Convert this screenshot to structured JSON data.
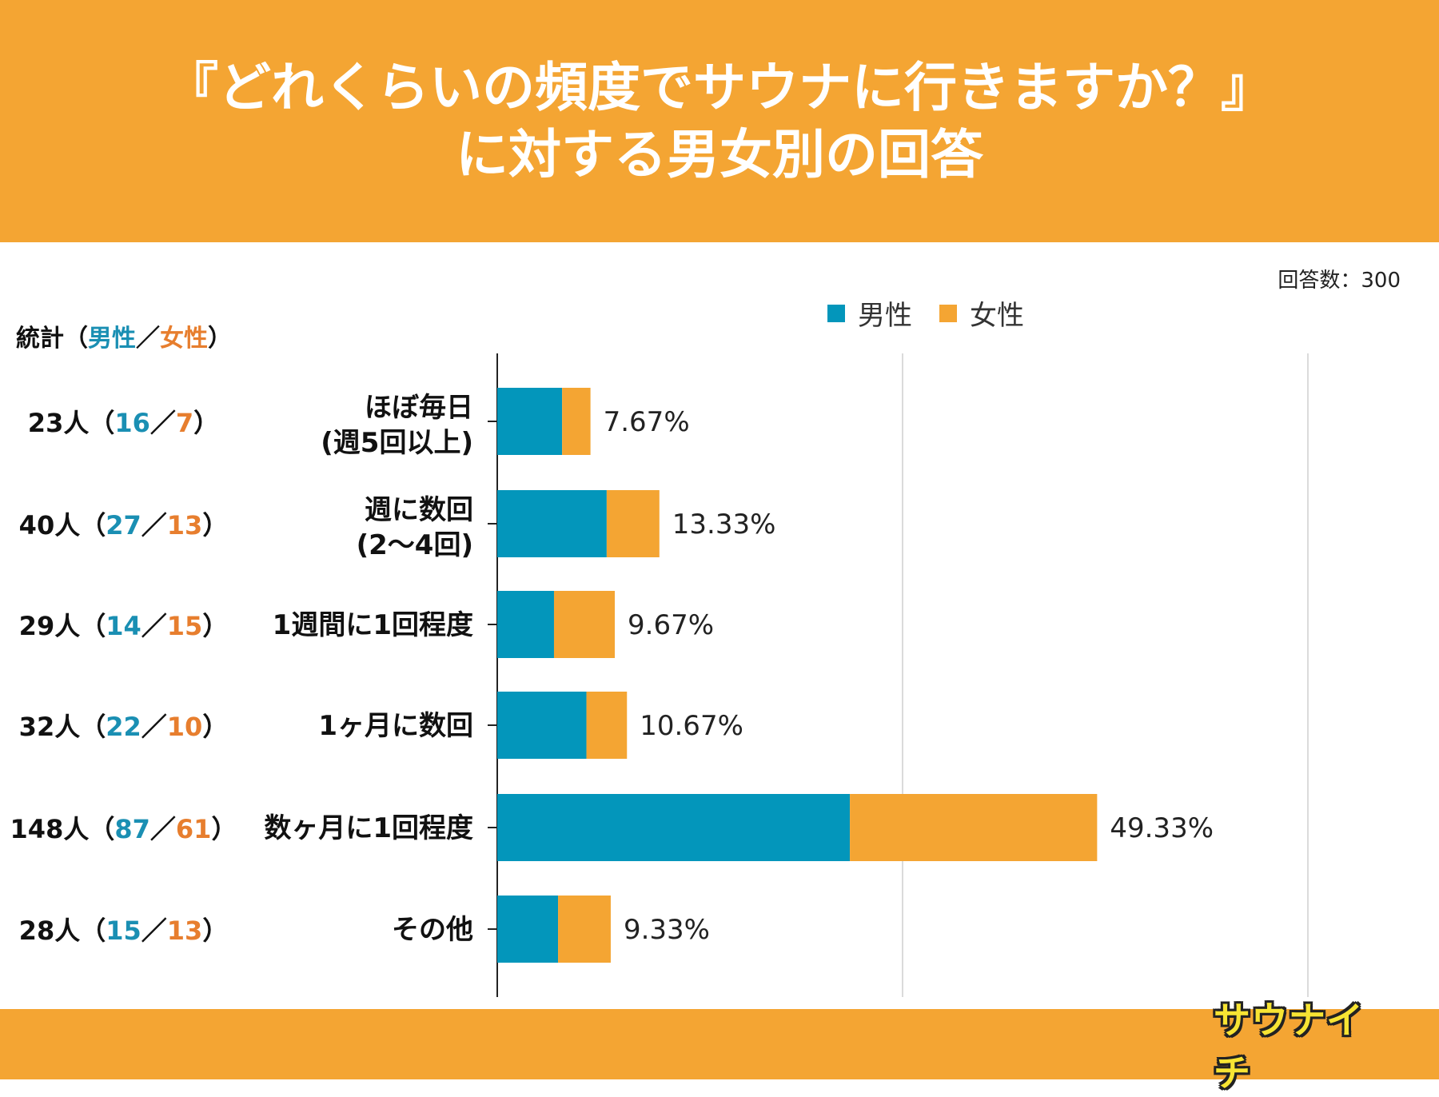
{
  "header": {
    "title_line1": "『どれくらいの頻度でサウナに行きますか？』",
    "title_line2": "に対する男女別の回答"
  },
  "respondents": "回答数：300",
  "legend": {
    "male": "男性",
    "female": "女性"
  },
  "stats": {
    "label": "統計",
    "open": "（",
    "male": "男性",
    "sep": "／",
    "female": "女性",
    "close": "）",
    "rows": [
      {
        "total": "23人",
        "male": "16",
        "female": "7"
      },
      {
        "total": "40人",
        "male": "27",
        "female": "13"
      },
      {
        "total": "29人",
        "male": "14",
        "female": "15"
      },
      {
        "total": "32人",
        "male": "22",
        "female": "10"
      },
      {
        "total": "148人",
        "male": "87",
        "female": "61"
      },
      {
        "total": "28人",
        "male": "15",
        "female": "13"
      }
    ]
  },
  "logo": "サウナイチ",
  "colors": {
    "male": "#0396bb",
    "female": "#f4a533",
    "male_text": "#1a8fb3",
    "female_text": "#e77e2e",
    "header_bg": "#f4a533",
    "grid": "#cfcfcf",
    "axis": "#222222"
  },
  "chart_data": {
    "type": "bar",
    "orientation": "horizontal",
    "stacked": true,
    "unit": "人",
    "xlim": [
      0,
      200
    ],
    "grid": true,
    "categories": [
      [
        "ほぼ毎日",
        "(週5回以上)"
      ],
      [
        "週に数回",
        "(2〜4回)"
      ],
      [
        "1週間に1回程度"
      ],
      [
        "1ヶ月に数回"
      ],
      [
        "数ヶ月に1回程度"
      ],
      [
        "その他"
      ]
    ],
    "series": [
      {
        "name": "男性",
        "values": [
          16,
          27,
          14,
          22,
          87,
          15
        ]
      },
      {
        "name": "女性",
        "values": [
          7,
          13,
          15,
          10,
          61,
          13
        ]
      }
    ],
    "data_labels": [
      "7.67%",
      "13.33%",
      "9.67%",
      "10.67%",
      "49.33%",
      "9.33%"
    ],
    "legend_position": "top-right"
  }
}
